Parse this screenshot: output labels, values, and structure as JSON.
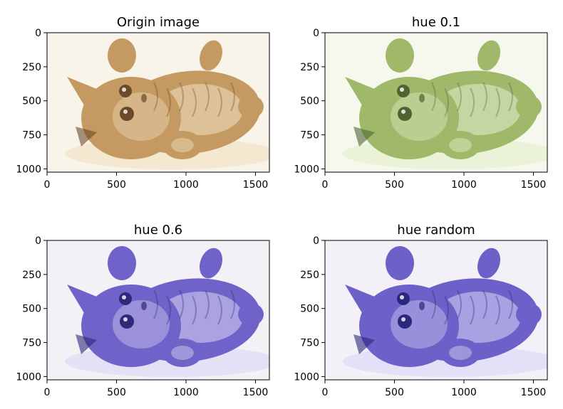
{
  "figure": {
    "panels": [
      {
        "title": "Origin image",
        "tint": {
          "hue": "#c49a62",
          "dark": "#6b4a2a",
          "light": "#f2e2c4"
        },
        "image_desc": "kitten",
        "xticks": [
          "0",
          "500",
          "1000",
          "1500"
        ],
        "yticks": [
          "0",
          "250",
          "500",
          "750",
          "1000"
        ]
      },
      {
        "title": "hue 0.1",
        "tint": {
          "hue": "#9fb86a",
          "dark": "#4f6530",
          "light": "#e6efcf"
        },
        "image_desc": "kitten",
        "xticks": [
          "0",
          "500",
          "1000",
          "1500"
        ],
        "yticks": [
          "0",
          "250",
          "500",
          "750",
          "1000"
        ]
      },
      {
        "title": "hue 0.6",
        "tint": {
          "hue": "#6f62c8",
          "dark": "#2d2a7a",
          "light": "#ddd9f5"
        },
        "image_desc": "kitten",
        "xticks": [
          "0",
          "500",
          "1000",
          "1500"
        ],
        "yticks": [
          "0",
          "250",
          "500",
          "750",
          "1000"
        ]
      },
      {
        "title": "hue random",
        "tint": {
          "hue": "#6b61c9",
          "dark": "#2b287c",
          "light": "#dcd8f6"
        },
        "image_desc": "kitten",
        "xticks": [
          "0",
          "500",
          "1000",
          "1500"
        ],
        "yticks": [
          "0",
          "250",
          "500",
          "750",
          "1000"
        ]
      }
    ]
  }
}
